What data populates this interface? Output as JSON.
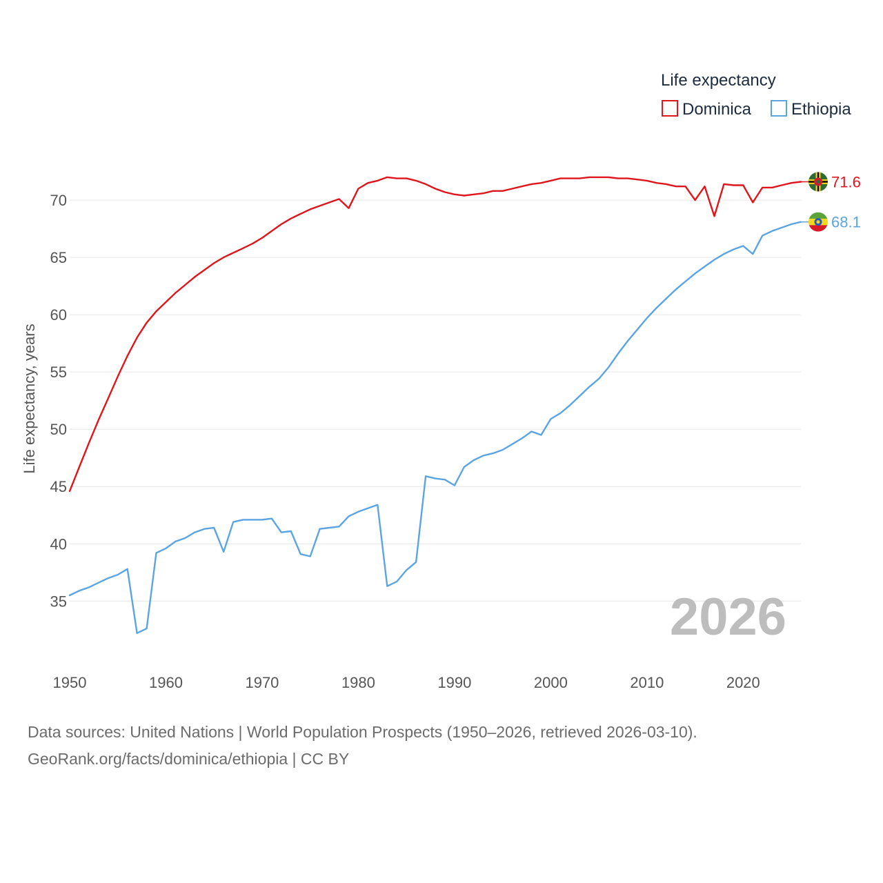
{
  "chart_data": {
    "type": "line",
    "legend_title": "Life expectancy",
    "ylabel": "Life expectancy, years",
    "xlabel": "",
    "current_year": "2026",
    "xlim": [
      1950,
      2026
    ],
    "ylim": [
      30.5,
      73.5
    ],
    "x_ticks": [
      1950,
      1960,
      1970,
      1980,
      1990,
      2000,
      2010,
      2020
    ],
    "y_ticks": [
      35,
      40,
      45,
      50,
      55,
      60,
      65,
      70
    ],
    "x": [
      1950,
      1951,
      1952,
      1953,
      1954,
      1955,
      1956,
      1957,
      1958,
      1959,
      1960,
      1961,
      1962,
      1963,
      1964,
      1965,
      1966,
      1967,
      1968,
      1969,
      1970,
      1971,
      1972,
      1973,
      1974,
      1975,
      1976,
      1977,
      1978,
      1979,
      1980,
      1981,
      1982,
      1983,
      1984,
      1985,
      1986,
      1987,
      1988,
      1989,
      1990,
      1991,
      1992,
      1993,
      1994,
      1995,
      1996,
      1997,
      1998,
      1999,
      2000,
      2001,
      2002,
      2003,
      2004,
      2005,
      2006,
      2007,
      2008,
      2009,
      2010,
      2011,
      2012,
      2013,
      2014,
      2015,
      2016,
      2017,
      2018,
      2019,
      2020,
      2021,
      2022,
      2023,
      2024,
      2025,
      2026
    ],
    "series": [
      {
        "name": "Dominica",
        "color": "#e0151b",
        "end_label": "71.6",
        "values": [
          44.6,
          46.7,
          48.8,
          50.8,
          52.7,
          54.6,
          56.4,
          58.0,
          59.3,
          60.3,
          61.1,
          61.9,
          62.6,
          63.3,
          63.9,
          64.5,
          65.0,
          65.4,
          65.8,
          66.2,
          66.7,
          67.3,
          67.9,
          68.4,
          68.8,
          69.2,
          69.5,
          69.8,
          70.1,
          69.3,
          71.0,
          71.5,
          71.7,
          72.0,
          71.9,
          71.9,
          71.7,
          71.4,
          71.0,
          70.7,
          70.5,
          70.4,
          70.5,
          70.6,
          70.8,
          70.8,
          71.0,
          71.2,
          71.4,
          71.5,
          71.7,
          71.9,
          71.9,
          71.9,
          72.0,
          72.0,
          72.0,
          71.9,
          71.9,
          71.8,
          71.7,
          71.5,
          71.4,
          71.2,
          71.2,
          70.0,
          71.2,
          68.6,
          71.4,
          71.3,
          71.3,
          69.8,
          71.1,
          71.1,
          71.3,
          71.5,
          71.6
        ]
      },
      {
        "name": "Ethiopia",
        "color": "#5ba4e3",
        "end_label": "68.1",
        "values": [
          35.5,
          35.9,
          36.2,
          36.6,
          37.0,
          37.3,
          37.8,
          32.2,
          32.6,
          39.2,
          39.6,
          40.2,
          40.5,
          41.0,
          41.3,
          41.4,
          39.3,
          41.9,
          42.1,
          42.1,
          42.1,
          42.2,
          41.0,
          41.1,
          39.1,
          38.9,
          41.3,
          41.4,
          41.5,
          42.4,
          42.8,
          43.1,
          43.4,
          36.3,
          36.7,
          37.7,
          38.4,
          45.9,
          45.7,
          45.6,
          45.1,
          46.7,
          47.3,
          47.7,
          47.9,
          48.2,
          48.7,
          49.2,
          49.8,
          49.5,
          50.9,
          51.4,
          52.1,
          52.9,
          53.7,
          54.4,
          55.4,
          56.6,
          57.7,
          58.7,
          59.7,
          60.6,
          61.4,
          62.2,
          62.9,
          63.6,
          64.2,
          64.8,
          65.3,
          65.7,
          66.0,
          65.3,
          66.9,
          67.3,
          67.6,
          67.9,
          68.1
        ]
      }
    ]
  },
  "legend": {
    "title": "Life expectancy",
    "items": [
      {
        "label": "Dominica",
        "color": "#e0151b"
      },
      {
        "label": "Ethiopia",
        "color": "#5ba4e3"
      }
    ]
  },
  "end_labels": {
    "dominica": "71.6",
    "ethiopia": "68.1",
    "dominica_flag_icon": "dominica-flag-icon",
    "ethiopia_flag_icon": "ethiopia-flag-icon"
  },
  "source": {
    "line1": "Data sources: United Nations | World Population Prospects (1950–2026, retrieved 2026-03-10).",
    "line2": "GeoRank.org/facts/dominica/ethiopia | CC BY"
  }
}
